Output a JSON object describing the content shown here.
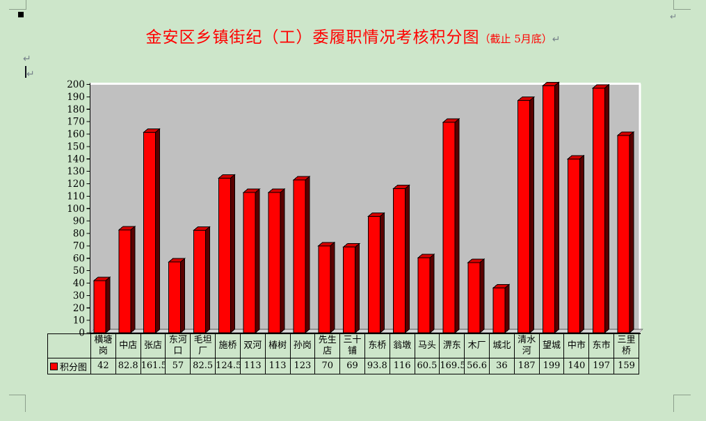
{
  "page": {
    "background": "#cde6ca"
  },
  "document": {
    "title": "金安区乡镇街纪（工）委履职情况考核积分图",
    "title_suffix": "（截止 5月底）",
    "title_color": "#ff0000",
    "paragraph_mark": "↵"
  },
  "chart_data": {
    "type": "bar",
    "title": "金安区乡镇街纪（工）委履职情况考核积分图（截止 5月底）",
    "legend": "积分图",
    "categories": [
      "横塘岗",
      "中店",
      "张店",
      "东河口",
      "毛坦厂",
      "施桥",
      "双河",
      "椿树",
      "孙岗",
      "先生店",
      "三十铺",
      "东桥",
      "翁墩",
      "马头",
      "淠东",
      "木厂",
      "城北",
      "清水河",
      "望城",
      "中市",
      "东市",
      "三里桥"
    ],
    "values": [
      42,
      82.8,
      161.5,
      57,
      82.5,
      124.5,
      113,
      113,
      123,
      70,
      69,
      93.8,
      116,
      60.5,
      169.5,
      56.6,
      36,
      187,
      199,
      140,
      197,
      159
    ],
    "xlabel": "",
    "ylabel": "",
    "ylim": [
      0,
      200
    ],
    "ytick_step": 10,
    "grid": false,
    "legend_position": "bottom-left of data table",
    "bar_color": "#ff0000",
    "bar_side_color": "#5a0000",
    "bar_top_color": "#d60000",
    "plot_bg": "#c0c0c0",
    "plot_border_color": "#ffffff",
    "floor_color": "#d9d9d9",
    "axis_color": "#000000"
  }
}
